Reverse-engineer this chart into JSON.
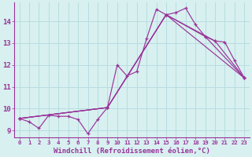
{
  "background_color": "#d8f0f0",
  "line_color": "#993399",
  "grid_color": "#b8dde0",
  "xlabel": "Windchill (Refroidissement éolien,°C)",
  "xlabel_fontsize": 6.5,
  "xtick_fontsize": 5.2,
  "ytick_fontsize": 6.5,
  "xlim": [
    -0.5,
    23.5
  ],
  "ylim": [
    8.7,
    14.85
  ],
  "yticks": [
    9,
    10,
    11,
    12,
    13,
    14
  ],
  "xticks": [
    0,
    1,
    2,
    3,
    4,
    5,
    6,
    7,
    8,
    9,
    10,
    11,
    12,
    13,
    14,
    15,
    16,
    17,
    18,
    19,
    20,
    21,
    22,
    23
  ],
  "series": [
    {
      "x": [
        0,
        1,
        2,
        3,
        4,
        5,
        6,
        7,
        8,
        9,
        10,
        11,
        12,
        13,
        14,
        15,
        16,
        17,
        18,
        19,
        20,
        21,
        22,
        23
      ],
      "y": [
        9.55,
        9.4,
        9.1,
        9.7,
        9.65,
        9.65,
        9.5,
        8.85,
        9.5,
        10.05,
        12.0,
        11.5,
        11.7,
        13.2,
        14.55,
        14.3,
        14.4,
        14.6,
        13.85,
        13.3,
        13.1,
        13.05,
        12.2,
        11.4
      ]
    },
    {
      "x": [
        0,
        9,
        15,
        20,
        23
      ],
      "y": [
        9.55,
        10.05,
        14.3,
        13.1,
        11.4
      ]
    },
    {
      "x": [
        0,
        9,
        15,
        19,
        23
      ],
      "y": [
        9.55,
        10.05,
        14.3,
        13.3,
        11.4
      ]
    },
    {
      "x": [
        0,
        9,
        15,
        23
      ],
      "y": [
        9.55,
        10.05,
        14.3,
        11.4
      ]
    }
  ]
}
